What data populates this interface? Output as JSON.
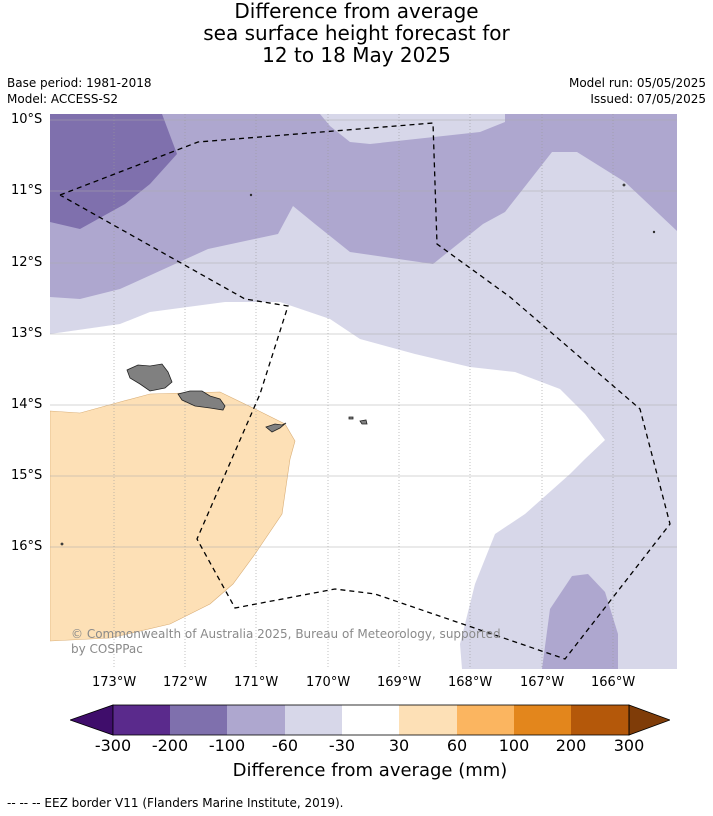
{
  "title": {
    "line1": "Difference from average",
    "line2": "sea surface height forecast for",
    "line3": "12 to 18 May 2025"
  },
  "meta": {
    "base_period": "Base period: 1981-2018",
    "model": "Model: ACCESS-S2",
    "model_run": "Model run: 05/05/2025",
    "issued": "Issued: 07/05/2025"
  },
  "map": {
    "lat_labels": [
      "10°S",
      "11°S",
      "12°S",
      "13°S",
      "14°S",
      "15°S",
      "16°S"
    ],
    "lon_labels": [
      "173°W",
      "172°W",
      "171°W",
      "170°W",
      "169°W",
      "168°W",
      "167°W",
      "166°W"
    ],
    "copyright_line1": "© Commonwealth of Australia 2025, Bureau of Meteorology, supported",
    "copyright_line2": "by COSPPac",
    "land_color": "#808080",
    "border_style": "dashed black"
  },
  "colorbar": {
    "title": "Difference from average (mm)",
    "ticks": [
      "-300",
      "-200",
      "-100",
      "-60",
      "-30",
      "30",
      "60",
      "100",
      "200",
      "300"
    ],
    "colors": [
      "#3f0d6b",
      "#5a2a8c",
      "#7f70ad",
      "#aea7cf",
      "#d7d7e9",
      "#ffffff",
      "#fde0b6",
      "#fbb560",
      "#e3861c",
      "#b4580a",
      "#7f3c08"
    ]
  },
  "footer": {
    "eez_note": "--  --  -- EEZ border V11 (Flanders Marine Institute, 2019)."
  }
}
